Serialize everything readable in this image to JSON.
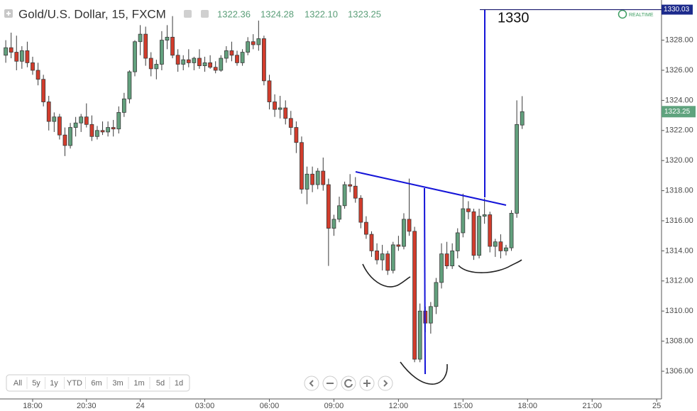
{
  "header": {
    "symbol": "Gold/U.S. Dollar, 15, FXCM",
    "values": [
      "1322.36",
      "1324.28",
      "1322.10",
      "1323.25"
    ],
    "status": "REALTIME"
  },
  "range_buttons": [
    "All",
    "5y",
    "1y",
    "YTD",
    "6m",
    "3m",
    "1m",
    "5d",
    "1d"
  ],
  "chart_data": {
    "type": "candlestick",
    "x": [
      -5,
      -4,
      -3,
      -2,
      -1,
      0,
      1,
      2,
      3,
      4,
      5,
      6,
      7,
      8,
      9,
      10,
      11,
      12,
      13,
      14,
      15,
      16,
      17,
      18,
      19,
      20,
      21,
      22,
      23,
      24,
      25,
      26,
      27,
      28,
      29,
      30,
      31,
      32,
      33,
      34,
      35,
      36,
      37,
      38,
      39,
      40,
      41,
      42,
      43,
      44,
      45,
      46,
      47,
      48,
      49,
      50,
      51,
      52,
      53,
      54,
      55,
      56,
      57,
      58,
      59,
      60,
      61,
      62,
      63,
      64,
      65,
      66,
      67,
      68,
      69,
      70,
      71,
      72,
      73,
      74,
      75,
      76,
      77,
      78,
      79,
      80,
      81,
      82,
      83,
      84,
      85,
      86,
      87,
      88,
      89,
      90,
      91
    ],
    "open": [
      1327.0,
      1327.5,
      1327.2,
      1326.6,
      1327.3,
      1326.5,
      1326.0,
      1325.4,
      1323.9,
      1322.6,
      1322.9,
      1321.7,
      1321.0,
      1322.2,
      1322.5,
      1322.9,
      1322.4,
      1321.6,
      1322.0,
      1321.9,
      1322.2,
      1322.1,
      1323.2,
      1324.1,
      1325.9,
      1327.9,
      1328.4,
      1326.8,
      1326.1,
      1326.4,
      1328.0,
      1328.2,
      1327.0,
      1326.4,
      1326.7,
      1326.5,
      1326.8,
      1326.3,
      1326.5,
      1326.2,
      1326.0,
      1326.8,
      1327.3,
      1327.0,
      1326.5,
      1327.2,
      1327.9,
      1327.7,
      1328.1,
      1325.3,
      1323.9,
      1323.4,
      1323.5,
      1322.8,
      1322.2,
      1321.2,
      1318.1,
      1319.1,
      1318.4,
      1319.3,
      1318.4,
      1315.5,
      1316.1,
      1317.0,
      1318.4,
      1318.3,
      1317.5,
      1315.9,
      1315.1,
      1314.0,
      1313.4,
      1313.8,
      1312.7,
      1314.4,
      1314.3,
      1316.1,
      1315.3,
      1306.8,
      1310.0,
      1309.2,
      1310.3,
      1311.9,
      1313.8,
      1313.0,
      1314.0,
      1315.2,
      1316.8,
      1316.6,
      1313.7,
      1316.3,
      1316.4,
      1314.3,
      1314.6,
      1314.0,
      1314.2,
      1316.5,
      1322.36
    ],
    "high": [
      1328.0,
      1328.5,
      1328.3,
      1327.6,
      1327.9,
      1326.9,
      1326.5,
      1325.7,
      1324.3,
      1323.2,
      1323.1,
      1322.2,
      1322.5,
      1322.9,
      1323.1,
      1323.8,
      1323.0,
      1322.3,
      1322.6,
      1322.6,
      1322.7,
      1323.6,
      1324.5,
      1326.0,
      1328.0,
      1329.0,
      1328.9,
      1327.2,
      1326.7,
      1328.6,
      1329.0,
      1329.6,
      1327.4,
      1327.0,
      1327.4,
      1326.9,
      1327.4,
      1326.9,
      1327.0,
      1326.6,
      1327.0,
      1327.6,
      1327.9,
      1327.3,
      1327.4,
      1328.2,
      1328.4,
      1329.3,
      1328.3,
      1325.7,
      1324.4,
      1324.3,
      1324.0,
      1323.3,
      1322.6,
      1321.6,
      1319.6,
      1319.6,
      1319.5,
      1320.2,
      1318.8,
      1316.4,
      1317.6,
      1318.6,
      1319.1,
      1318.9,
      1317.7,
      1316.3,
      1315.3,
      1314.5,
      1314.4,
      1314.0,
      1314.6,
      1315.0,
      1316.5,
      1318.8,
      1315.6,
      1310.5,
      1310.3,
      1310.6,
      1312.2,
      1314.5,
      1314.6,
      1314.5,
      1315.5,
      1317.8,
      1317.3,
      1316.8,
      1316.8,
      1317.5,
      1316.6,
      1314.8,
      1315.1,
      1314.4,
      1316.7,
      1324.0,
      1324.28
    ],
    "low": [
      1326.5,
      1326.8,
      1326.0,
      1326.1,
      1326.2,
      1325.7,
      1325.0,
      1323.6,
      1322.0,
      1321.9,
      1321.4,
      1320.3,
      1320.8,
      1321.6,
      1321.9,
      1322.2,
      1321.3,
      1321.4,
      1321.7,
      1321.6,
      1321.6,
      1321.8,
      1322.9,
      1323.8,
      1325.6,
      1327.0,
      1326.3,
      1325.6,
      1325.4,
      1326.0,
      1327.4,
      1326.8,
      1325.9,
      1326.0,
      1326.2,
      1326.0,
      1326.1,
      1325.9,
      1326.1,
      1325.8,
      1325.9,
      1326.5,
      1326.6,
      1326.3,
      1326.3,
      1327.0,
      1327.4,
      1327.3,
      1325.0,
      1323.4,
      1322.9,
      1322.8,
      1322.4,
      1321.7,
      1320.5,
      1317.8,
      1317.1,
      1317.9,
      1318.1,
      1318.0,
      1313.0,
      1315.0,
      1315.9,
      1316.8,
      1317.9,
      1317.2,
      1315.5,
      1314.8,
      1313.6,
      1313.1,
      1312.7,
      1312.4,
      1312.5,
      1314.0,
      1314.1,
      1315.0,
      1306.6,
      1306.6,
      1308.6,
      1308.5,
      1309.8,
      1311.5,
      1312.8,
      1312.8,
      1313.5,
      1314.9,
      1316.1,
      1313.4,
      1313.5,
      1315.8,
      1313.9,
      1313.6,
      1313.5,
      1313.7,
      1314.0,
      1316.2,
      1322.1
    ],
    "close": [
      1327.5,
      1327.2,
      1326.6,
      1327.3,
      1326.5,
      1326.0,
      1325.4,
      1323.9,
      1322.6,
      1322.9,
      1321.7,
      1321.0,
      1322.2,
      1322.5,
      1322.9,
      1322.4,
      1321.6,
      1322.0,
      1321.9,
      1322.2,
      1322.1,
      1323.2,
      1324.1,
      1325.9,
      1327.9,
      1328.4,
      1326.8,
      1326.1,
      1326.4,
      1328.0,
      1328.2,
      1327.0,
      1326.4,
      1326.7,
      1326.5,
      1326.8,
      1326.3,
      1326.5,
      1326.2,
      1326.0,
      1326.8,
      1327.3,
      1327.0,
      1326.5,
      1327.2,
      1327.9,
      1327.7,
      1328.1,
      1325.3,
      1323.9,
      1323.4,
      1323.5,
      1322.8,
      1322.2,
      1321.2,
      1318.1,
      1319.1,
      1318.4,
      1319.3,
      1318.4,
      1315.5,
      1316.1,
      1317.0,
      1318.4,
      1318.3,
      1317.5,
      1315.9,
      1315.1,
      1314.0,
      1313.4,
      1313.8,
      1312.7,
      1314.4,
      1314.3,
      1316.1,
      1315.3,
      1306.8,
      1310.0,
      1309.2,
      1310.3,
      1311.9,
      1313.8,
      1313.0,
      1314.0,
      1315.2,
      1316.8,
      1316.6,
      1313.7,
      1316.3,
      1316.4,
      1314.3,
      1314.6,
      1314.0,
      1314.2,
      1316.5,
      1322.4,
      1323.25
    ],
    "up_color": "#62a07d",
    "down_color": "#d23c2c",
    "wick_color": "#3a3a3a",
    "xlim": [
      -6.07,
      116.9
    ],
    "xticks": [
      {
        "value": 0,
        "label": "18:00"
      },
      {
        "value": 10,
        "label": "20:30"
      },
      {
        "value": 20,
        "label": "24"
      },
      {
        "value": 32,
        "label": "03:00"
      },
      {
        "value": 44,
        "label": "06:00"
      },
      {
        "value": 56,
        "label": "09:00"
      },
      {
        "value": 68,
        "label": "12:00"
      },
      {
        "value": 80,
        "label": "15:00"
      },
      {
        "value": 92,
        "label": "18:00"
      },
      {
        "value": 104,
        "label": "21:00"
      },
      {
        "value": 116,
        "label": "25"
      }
    ],
    "ylim": [
      1304.16,
      1330.67
    ],
    "yticks": [
      {
        "value": 1306,
        "label": "1306.00"
      },
      {
        "value": 1308,
        "label": "1308.00"
      },
      {
        "value": 1310,
        "label": "1310.00"
      },
      {
        "value": 1312,
        "label": "1312.00"
      },
      {
        "value": 1314,
        "label": "1314.00"
      },
      {
        "value": 1316,
        "label": "1316.00"
      },
      {
        "value": 1318,
        "label": "1318.00"
      },
      {
        "value": 1320,
        "label": "1320.00"
      },
      {
        "value": 1322,
        "label": "1322.00"
      },
      {
        "value": 1324,
        "label": "1324.00"
      },
      {
        "value": 1326,
        "label": "1326.00"
      },
      {
        "value": 1328,
        "label": "1328.00"
      }
    ],
    "grid": false,
    "last_price": {
      "value": 1323.25,
      "label": "1323.25"
    },
    "target_line": {
      "value": 1330.03,
      "label": "1330.03"
    },
    "annotation": "1330"
  }
}
